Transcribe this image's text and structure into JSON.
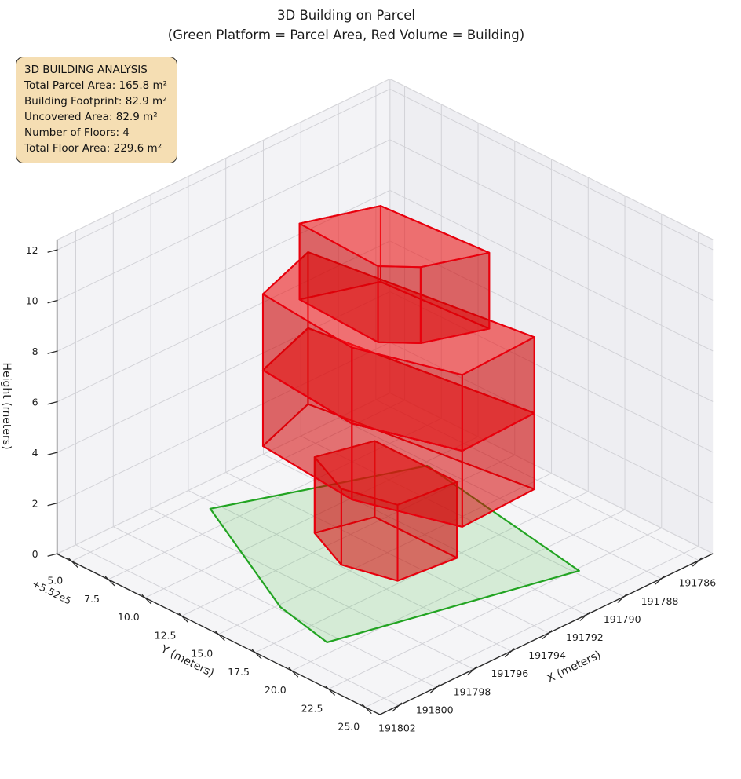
{
  "title": "3D Building on Parcel",
  "subtitle": "(Green Platform = Parcel Area, Red Volume = Building)",
  "info_box": {
    "title": "3D BUILDING ANALYSIS",
    "lines": [
      "Total Parcel Area: 165.8 m²",
      "Building Footprint: 82.9 m²",
      "Uncovered Area: 82.9 m²",
      "Number of Floors: 4",
      "Total Floor Area: 229.6 m²"
    ],
    "bg_color": "#f5deb3",
    "border_color": "#2b2b2b"
  },
  "chart_data": {
    "type": "3d-building",
    "title": "3D Building on Parcel",
    "subtitle": "(Green Platform = Parcel Area, Red Volume = Building)",
    "legend_note": "Green Platform = Parcel Area, Red Volume = Building",
    "axes": {
      "x": {
        "label": "X (meters)",
        "min": 191785.25,
        "max": 191803.0,
        "ticks": [
          191786,
          191788,
          191790,
          191792,
          191794,
          191796,
          191798,
          191800,
          191802
        ]
      },
      "y": {
        "label": "Y (meters)",
        "offset_text": "+5.52e5",
        "min": 552004.0,
        "max": 552026.0,
        "tick_labels": [
          "5.0",
          "7.5",
          "10.0",
          "12.5",
          "15.0",
          "17.5",
          "20.0",
          "22.5",
          "25.0"
        ],
        "tick_values": [
          552005.0,
          552007.5,
          552010.0,
          552012.5,
          552015.0,
          552017.5,
          552020.0,
          552022.5,
          552025.0
        ]
      },
      "z": {
        "label": "Height (meters)",
        "min": 0,
        "max": 12.4,
        "ticks": [
          0,
          2,
          4,
          6,
          8,
          10,
          12
        ]
      }
    },
    "parcel": {
      "name": "parcel-platform",
      "area_m2": 165.8,
      "fill": "#55c455",
      "fill_opacity": 0.2,
      "edge": "#22a422",
      "polygon": [
        [
          191796.4,
          552006.0
        ],
        [
          191799.85,
          552015.2
        ],
        [
          191800.5,
          552019.2
        ],
        [
          191789.8,
          552022.7
        ],
        [
          191788.2,
          552010.3
        ]
      ]
    },
    "building": {
      "footprint_m2": 82.9,
      "uncovered_m2": 82.9,
      "num_floors": 4,
      "total_floor_area_m2": 229.6,
      "edge": "#e8000d",
      "side_fill": "#cc0202",
      "side_opacity": 0.36,
      "top_fill": "#ff2a2a",
      "top_opacity": 0.38,
      "bottom_fill": "#e01010",
      "bottom_opacity": 0.3,
      "floors": [
        {
          "name": "floor-1",
          "z0": 0,
          "z1": 3,
          "footprint": [
            [
              191794.9,
              552011.2
            ],
            [
              191792.4,
              552012.1
            ],
            [
              191792.4,
              552017.7
            ],
            [
              191795.25,
              552017.3
            ],
            [
              191795.9,
              552014.3
            ]
          ]
        },
        {
          "name": "floor-2",
          "z0": 3,
          "z1": 6,
          "footprint": [
            [
              191795.7,
              552008.7
            ],
            [
              191792.2,
              552007.3
            ],
            [
              191790.7,
              552020.8
            ],
            [
              191794.7,
              552021.0
            ],
            [
              191796.2,
              552015.4
            ]
          ]
        },
        {
          "name": "floor-3",
          "z0": 6,
          "z1": 9,
          "footprint": [
            [
              191795.7,
              552008.7
            ],
            [
              191792.2,
              552007.3
            ],
            [
              191790.7,
              552020.8
            ],
            [
              191794.7,
              552021.0
            ],
            [
              191796.2,
              552015.4
            ]
          ]
        },
        {
          "name": "floor-4",
          "z0": 9,
          "z1": 12,
          "footprint": [
            [
              191795.0,
              552010.3
            ],
            [
              191791.85,
              552011.8
            ],
            [
              191791.46,
              552018.7
            ],
            [
              191794.1,
              552017.4
            ],
            [
              191795.2,
              552015.9
            ]
          ]
        }
      ]
    },
    "colors": {
      "pane_left": "#f3f3f6",
      "pane_right": "#eeeef2",
      "pane_floor": "#f5f5f7",
      "grid": "#d2d2d7",
      "rim": "#d6d6da",
      "spine": "#2b2b2b",
      "tick_text": "#1f1f1f"
    }
  }
}
